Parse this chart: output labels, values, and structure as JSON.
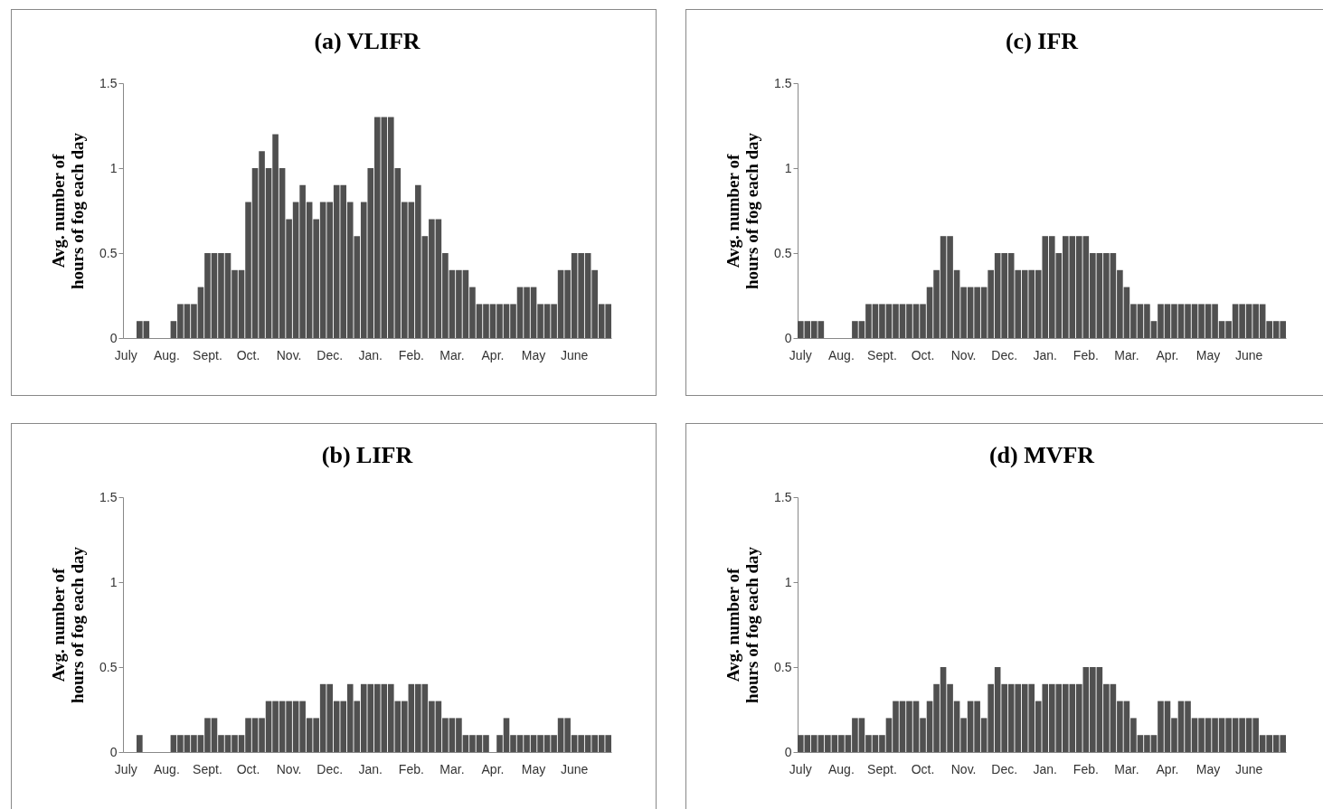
{
  "chart_data": [
    {
      "type": "bar",
      "title": "(a) VLIFR",
      "ylabel": "Avg. number of hours of fog each day",
      "categories": [
        "July",
        null,
        null,
        null,
        null,
        null,
        "Aug.",
        null,
        null,
        null,
        null,
        null,
        "Sept.",
        null,
        null,
        null,
        null,
        null,
        "Oct.",
        null,
        null,
        null,
        null,
        null,
        "Nov.",
        null,
        null,
        null,
        null,
        null,
        "Dec.",
        null,
        null,
        null,
        null,
        null,
        "Jan.",
        null,
        null,
        null,
        null,
        null,
        "Feb.",
        null,
        null,
        null,
        null,
        null,
        "Mar.",
        null,
        null,
        null,
        null,
        null,
        "Apr.",
        null,
        null,
        null,
        null,
        null,
        "May",
        null,
        null,
        null,
        null,
        null,
        "June",
        null,
        null,
        null,
        null,
        null
      ],
      "color": "#505050",
      "ylim": [
        0,
        1.5
      ],
      "yticks": [
        0,
        0.5,
        1,
        1.5
      ],
      "grid": false,
      "values": [
        0,
        0,
        0.1,
        0.1,
        0,
        0,
        0,
        0.1,
        0.2,
        0.2,
        0.2,
        0.3,
        0.5,
        0.5,
        0.5,
        0.5,
        0.4,
        0.4,
        0.8,
        1.0,
        1.1,
        1.0,
        1.2,
        1.0,
        0.7,
        0.8,
        0.9,
        0.8,
        0.7,
        0.8,
        0.8,
        0.9,
        0.9,
        0.8,
        0.6,
        0.8,
        1.0,
        1.3,
        1.3,
        1.3,
        1.0,
        0.8,
        0.8,
        0.9,
        0.6,
        0.7,
        0.7,
        0.5,
        0.4,
        0.4,
        0.4,
        0.3,
        0.2,
        0.2,
        0.2,
        0.2,
        0.2,
        0.2,
        0.3,
        0.3,
        0.3,
        0.2,
        0.2,
        0.2,
        0.4,
        0.4,
        0.5,
        0.5,
        0.5,
        0.4,
        0.2,
        0.2
      ]
    },
    {
      "type": "bar",
      "title": "(c) IFR",
      "ylabel": "Avg. number of hours of fog each day",
      "categories": [
        "July",
        null,
        null,
        null,
        null,
        null,
        "Aug.",
        null,
        null,
        null,
        null,
        null,
        "Sept.",
        null,
        null,
        null,
        null,
        null,
        "Oct.",
        null,
        null,
        null,
        null,
        null,
        "Nov.",
        null,
        null,
        null,
        null,
        null,
        "Dec.",
        null,
        null,
        null,
        null,
        null,
        "Jan.",
        null,
        null,
        null,
        null,
        null,
        "Feb.",
        null,
        null,
        null,
        null,
        null,
        "Mar.",
        null,
        null,
        null,
        null,
        null,
        "Apr.",
        null,
        null,
        null,
        null,
        null,
        "May",
        null,
        null,
        null,
        null,
        null,
        "June",
        null,
        null,
        null,
        null,
        null
      ],
      "color": "#505050",
      "ylim": [
        0,
        1.5
      ],
      "yticks": [
        0,
        0.5,
        1,
        1.5
      ],
      "grid": false,
      "values": [
        0.1,
        0.1,
        0.1,
        0.1,
        0,
        0,
        0,
        0,
        0.1,
        0.1,
        0.2,
        0.2,
        0.2,
        0.2,
        0.2,
        0.2,
        0.2,
        0.2,
        0.2,
        0.3,
        0.4,
        0.6,
        0.6,
        0.4,
        0.3,
        0.3,
        0.3,
        0.3,
        0.4,
        0.5,
        0.5,
        0.5,
        0.4,
        0.4,
        0.4,
        0.4,
        0.6,
        0.6,
        0.5,
        0.6,
        0.6,
        0.6,
        0.6,
        0.5,
        0.5,
        0.5,
        0.5,
        0.4,
        0.3,
        0.2,
        0.2,
        0.2,
        0.1,
        0.2,
        0.2,
        0.2,
        0.2,
        0.2,
        0.2,
        0.2,
        0.2,
        0.2,
        0.1,
        0.1,
        0.2,
        0.2,
        0.2,
        0.2,
        0.2,
        0.1,
        0.1,
        0.1
      ]
    },
    {
      "type": "bar",
      "title": "(b) LIFR",
      "ylabel": "Avg. number of hours of fog each day",
      "categories": [
        "July",
        null,
        null,
        null,
        null,
        null,
        "Aug.",
        null,
        null,
        null,
        null,
        null,
        "Sept.",
        null,
        null,
        null,
        null,
        null,
        "Oct.",
        null,
        null,
        null,
        null,
        null,
        "Nov.",
        null,
        null,
        null,
        null,
        null,
        "Dec.",
        null,
        null,
        null,
        null,
        null,
        "Jan.",
        null,
        null,
        null,
        null,
        null,
        "Feb.",
        null,
        null,
        null,
        null,
        null,
        "Mar.",
        null,
        null,
        null,
        null,
        null,
        "Apr.",
        null,
        null,
        null,
        null,
        null,
        "May",
        null,
        null,
        null,
        null,
        null,
        "June",
        null,
        null,
        null,
        null,
        null
      ],
      "color": "#505050",
      "ylim": [
        0,
        1.5
      ],
      "yticks": [
        0,
        0.5,
        1,
        1.5
      ],
      "grid": false,
      "values": [
        0,
        0,
        0.1,
        0,
        0,
        0,
        0,
        0.1,
        0.1,
        0.1,
        0.1,
        0.1,
        0.2,
        0.2,
        0.1,
        0.1,
        0.1,
        0.1,
        0.2,
        0.2,
        0.2,
        0.3,
        0.3,
        0.3,
        0.3,
        0.3,
        0.3,
        0.2,
        0.2,
        0.4,
        0.4,
        0.3,
        0.3,
        0.4,
        0.3,
        0.4,
        0.4,
        0.4,
        0.4,
        0.4,
        0.3,
        0.3,
        0.4,
        0.4,
        0.4,
        0.3,
        0.3,
        0.2,
        0.2,
        0.2,
        0.1,
        0.1,
        0.1,
        0.1,
        0,
        0.1,
        0.2,
        0.1,
        0.1,
        0.1,
        0.1,
        0.1,
        0.1,
        0.1,
        0.2,
        0.2,
        0.1,
        0.1,
        0.1,
        0.1,
        0.1,
        0.1
      ]
    },
    {
      "type": "bar",
      "title": "(d) MVFR",
      "ylabel": "Avg. number of hours of fog each day",
      "categories": [
        "July",
        null,
        null,
        null,
        null,
        null,
        "Aug.",
        null,
        null,
        null,
        null,
        null,
        "Sept.",
        null,
        null,
        null,
        null,
        null,
        "Oct.",
        null,
        null,
        null,
        null,
        null,
        "Nov.",
        null,
        null,
        null,
        null,
        null,
        "Dec.",
        null,
        null,
        null,
        null,
        null,
        "Jan.",
        null,
        null,
        null,
        null,
        null,
        "Feb.",
        null,
        null,
        null,
        null,
        null,
        "Mar.",
        null,
        null,
        null,
        null,
        null,
        "Apr.",
        null,
        null,
        null,
        null,
        null,
        "May",
        null,
        null,
        null,
        null,
        null,
        "June",
        null,
        null,
        null,
        null,
        null
      ],
      "color": "#505050",
      "ylim": [
        0,
        1.5
      ],
      "yticks": [
        0,
        0.5,
        1,
        1.5
      ],
      "grid": false,
      "values": [
        0.1,
        0.1,
        0.1,
        0.1,
        0.1,
        0.1,
        0.1,
        0.1,
        0.2,
        0.2,
        0.1,
        0.1,
        0.1,
        0.2,
        0.3,
        0.3,
        0.3,
        0.3,
        0.2,
        0.3,
        0.4,
        0.5,
        0.4,
        0.3,
        0.2,
        0.3,
        0.3,
        0.2,
        0.4,
        0.5,
        0.4,
        0.4,
        0.4,
        0.4,
        0.4,
        0.3,
        0.4,
        0.4,
        0.4,
        0.4,
        0.4,
        0.4,
        0.5,
        0.5,
        0.5,
        0.4,
        0.4,
        0.3,
        0.3,
        0.2,
        0.1,
        0.1,
        0.1,
        0.3,
        0.3,
        0.2,
        0.3,
        0.3,
        0.2,
        0.2,
        0.2,
        0.2,
        0.2,
        0.2,
        0.2,
        0.2,
        0.2,
        0.2,
        0.1,
        0.1,
        0.1,
        0.1
      ]
    }
  ]
}
